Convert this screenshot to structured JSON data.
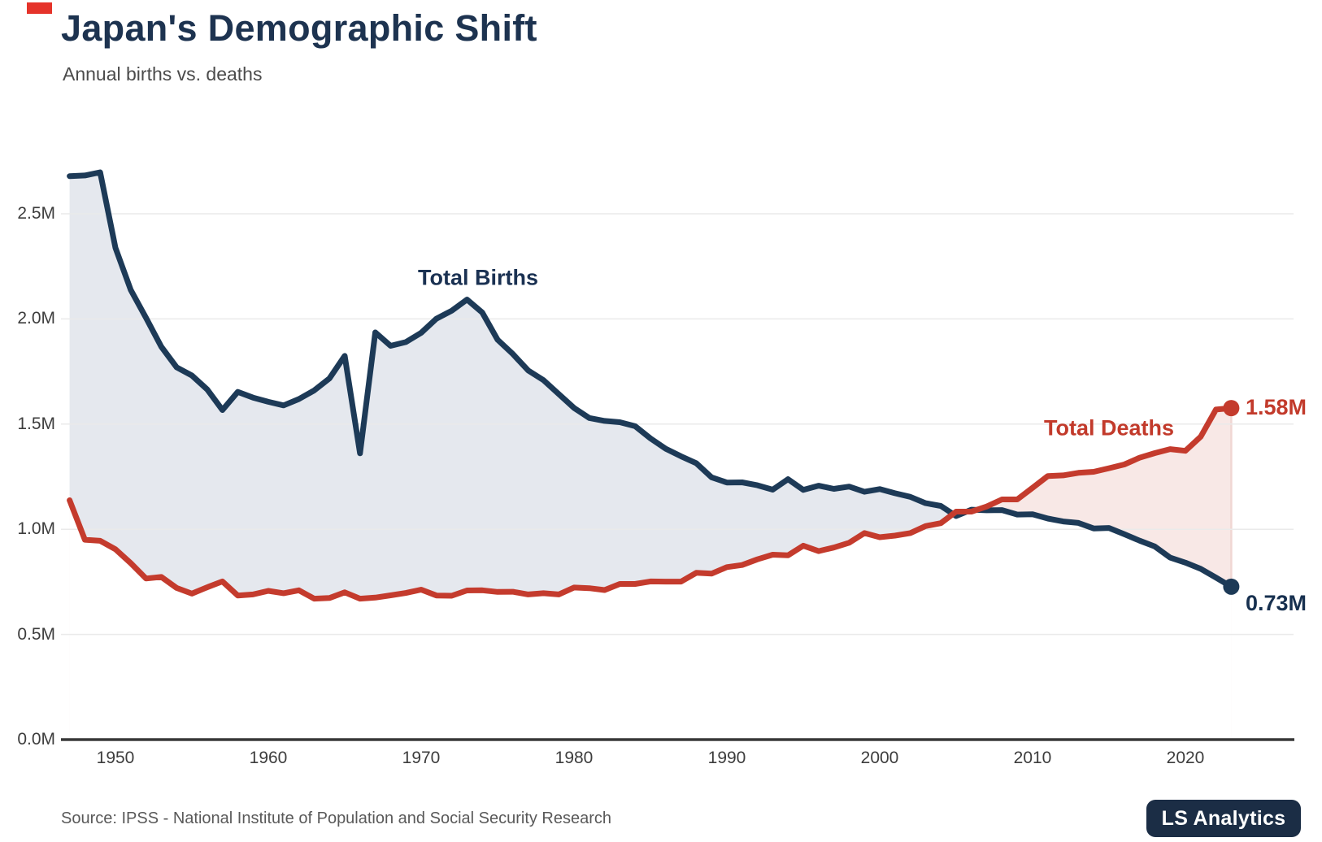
{
  "header": {
    "title": "Japan's Demographic Shift",
    "subtitle": "Annual births vs. deaths"
  },
  "chart_data": {
    "type": "line",
    "title": "Japan's Demographic Shift",
    "subtitle": "Annual births vs. deaths",
    "unit": "millions of people per year",
    "xlim": [
      1947,
      2023
    ],
    "ylim": [
      0,
      2.7
    ],
    "grid": "horizontal",
    "legend": "inline-annotations",
    "x": [
      1947,
      1948,
      1949,
      1950,
      1951,
      1952,
      1953,
      1954,
      1955,
      1956,
      1957,
      1958,
      1959,
      1960,
      1961,
      1962,
      1963,
      1964,
      1965,
      1966,
      1967,
      1968,
      1969,
      1970,
      1971,
      1972,
      1973,
      1974,
      1975,
      1976,
      1977,
      1978,
      1979,
      1980,
      1981,
      1982,
      1983,
      1984,
      1985,
      1986,
      1987,
      1988,
      1989,
      1990,
      1991,
      1992,
      1993,
      1994,
      1995,
      1996,
      1997,
      1998,
      1999,
      2000,
      2001,
      2002,
      2003,
      2004,
      2005,
      2006,
      2007,
      2008,
      2009,
      2010,
      2011,
      2012,
      2013,
      2014,
      2015,
      2016,
      2017,
      2018,
      2019,
      2020,
      2021,
      2022,
      2023
    ],
    "series": [
      {
        "name": "Total Births",
        "color": "#1d3a57",
        "end_label": "0.73M",
        "values": [
          2.679,
          2.682,
          2.697,
          2.338,
          2.138,
          2.005,
          1.868,
          1.77,
          1.731,
          1.665,
          1.567,
          1.653,
          1.626,
          1.606,
          1.589,
          1.619,
          1.66,
          1.717,
          1.824,
          1.361,
          1.936,
          1.872,
          1.89,
          1.934,
          2.001,
          2.039,
          2.092,
          2.03,
          1.901,
          1.833,
          1.755,
          1.709,
          1.643,
          1.577,
          1.529,
          1.515,
          1.509,
          1.49,
          1.432,
          1.383,
          1.347,
          1.314,
          1.247,
          1.222,
          1.223,
          1.209,
          1.188,
          1.238,
          1.187,
          1.207,
          1.192,
          1.203,
          1.178,
          1.191,
          1.171,
          1.154,
          1.124,
          1.111,
          1.063,
          1.093,
          1.09,
          1.091,
          1.07,
          1.071,
          1.051,
          1.037,
          1.03,
          1.004,
          1.006,
          0.977,
          0.946,
          0.918,
          0.865,
          0.841,
          0.812,
          0.77,
          0.727
        ]
      },
      {
        "name": "Total Deaths",
        "color": "#c43b2d",
        "end_label": "1.58M",
        "values": [
          1.138,
          0.95,
          0.945,
          0.905,
          0.839,
          0.766,
          0.773,
          0.721,
          0.694,
          0.724,
          0.752,
          0.685,
          0.69,
          0.707,
          0.696,
          0.71,
          0.67,
          0.673,
          0.7,
          0.67,
          0.675,
          0.686,
          0.697,
          0.713,
          0.685,
          0.684,
          0.709,
          0.71,
          0.702,
          0.703,
          0.69,
          0.696,
          0.69,
          0.723,
          0.72,
          0.711,
          0.74,
          0.74,
          0.752,
          0.751,
          0.751,
          0.793,
          0.789,
          0.82,
          0.83,
          0.857,
          0.879,
          0.876,
          0.922,
          0.896,
          0.913,
          0.936,
          0.982,
          0.962,
          0.97,
          0.982,
          1.015,
          1.029,
          1.084,
          1.084,
          1.108,
          1.142,
          1.142,
          1.197,
          1.253,
          1.256,
          1.268,
          1.273,
          1.29,
          1.308,
          1.34,
          1.362,
          1.381,
          1.373,
          1.44,
          1.569,
          1.576
        ]
      },
      {
        "name": "_note",
        "color": "",
        "end_label": "",
        "values": []
      }
    ],
    "y_ticks": [
      {
        "label": "0.0M",
        "value": 0.0
      },
      {
        "label": "0.5M",
        "value": 0.5
      },
      {
        "label": "1.0M",
        "value": 1.0
      },
      {
        "label": "1.5M",
        "value": 1.5
      },
      {
        "label": "2.0M",
        "value": 2.0
      },
      {
        "label": "2.5M",
        "value": 2.5
      }
    ],
    "x_ticks": [
      {
        "label": "1950",
        "value": 1950
      },
      {
        "label": "1960",
        "value": 1960
      },
      {
        "label": "1970",
        "value": 1970
      },
      {
        "label": "1980",
        "value": 1980
      },
      {
        "label": "1990",
        "value": 1990
      },
      {
        "label": "2000",
        "value": 2000
      },
      {
        "label": "2010",
        "value": 2010
      },
      {
        "label": "2020",
        "value": 2020
      }
    ],
    "fills": {
      "births_above_deaths": "#e5e8ee",
      "deaths_above_births": "#f8e8e6",
      "right_edge_line": "#f0d7d3"
    },
    "colors": {
      "grid": "#eaeaea",
      "axis": "#383838",
      "tick_text": "#3d3d3d"
    }
  },
  "annotations": {
    "births_label": "Total Births",
    "deaths_label": "Total Deaths",
    "deaths_end_value": "1.58M",
    "births_end_value": "0.73M"
  },
  "footer": {
    "source": "Source: IPSS - National Institute of Population and Social Security Research",
    "badge": "LS Analytics"
  },
  "accent_color": "#e5332a"
}
